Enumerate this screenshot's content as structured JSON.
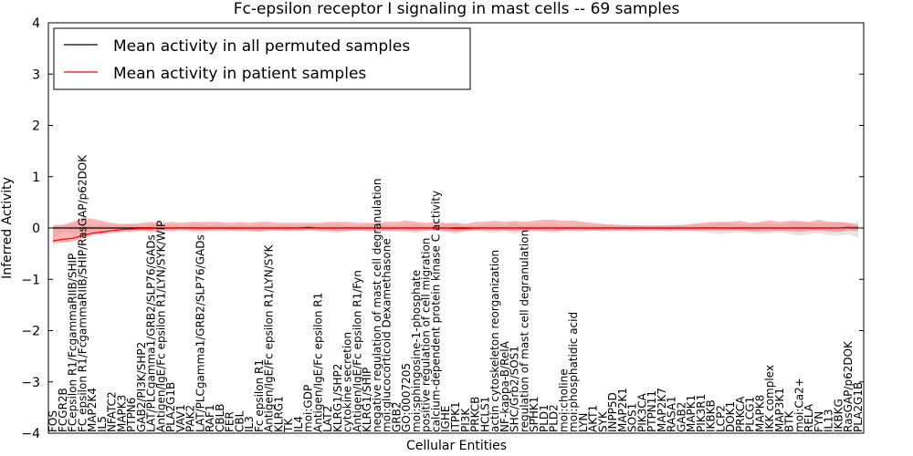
{
  "chart_data": {
    "type": "line",
    "title": "Fc-epsilon receptor I signaling in mast cells -- 69 samples",
    "xlabel": "Cellular Entities",
    "ylabel": "Inferred Activity",
    "ylim": [
      -4,
      4
    ],
    "yticks": [
      "-4",
      "-3",
      "-2",
      "-1",
      "0",
      "1",
      "2",
      "3",
      "4"
    ],
    "legend": {
      "position": "top-left",
      "entries": [
        {
          "label": "Mean activity in all permuted samples",
          "color": "#000000"
        },
        {
          "label": "Mean activity in patient samples",
          "color": "#ff0000"
        }
      ]
    },
    "categories": [
      "FOS",
      "FCGR2B",
      "FCepsilon R1/FcgammaRIIB/SHIP",
      "FC epsilon R1/FcgammaRIIB/SHIP/RasGAP/p62DOK",
      "MAP2K4",
      "IL5",
      "NFATC2",
      "MAPK3",
      "PTPN6",
      "GAB2/PI3K/SHP2",
      "LAT/PLCgamma1/GRB2/SLP76/GADs",
      "Antigen/IgE/Fc epsilon R1/LYN/SYK/WIP",
      "PLA2G1B",
      "VAV1",
      "PAK2",
      "LAT/PLCgamma1/GRB2/SLP76/GADs",
      "RAF1",
      "CBLB",
      "FER",
      "CBL",
      "IL3",
      "Fc epsilon R1",
      "Antigen/IgE/Fc epsilon R1/LYN/SYK",
      "KLRG1",
      "TK",
      "IL4",
      "moi:GDP",
      "Antigen/IgE/Fc epsilon R1",
      "LAT2",
      "KLRG1/SHP2",
      "cytokine secretion",
      "Antigen/IgE/Fc epsilon R1/Fyn",
      "KLRG1/SHIP",
      "negative regulation of mast cell degranulation",
      "moi:glucocorticoid Dexamethasone",
      "GRB2",
      "GO:0007205",
      "moi:sphingosine-1-phosphate",
      "positive regulation of cell migration",
      "calcium-dependent protein kinase C activity",
      "IGHE",
      "ITPK1",
      "PI3K",
      "PRKCB",
      "HCLS1",
      "actin cytoskeleton reorganization",
      "NF-kappa-B/RelA",
      "SHC/Grb2/SOS1",
      "regulation of mast cell degranulation",
      "SPHK1",
      "PLD1",
      "PLD2",
      "moi:choline",
      "moi:phosphatidic acid",
      "LYN",
      "AKT1",
      "SYK",
      "INPP5D",
      "MAP2K1",
      "SOS1",
      "PIK3CA",
      "PTPN11",
      "MAP2K7",
      "RASA1",
      "GAB2",
      "MAPK1",
      "PIK3R1",
      "IKBKB",
      "LCP2",
      "DOK1",
      "PRKCA",
      "PLCG1",
      "MAPK8",
      "IKK complex",
      "MAP3K1",
      "BTK",
      "moi:Ca2+",
      "RELA",
      "FYN",
      "IL13",
      "IKBKG",
      "RasGAP/p62DOK",
      "PLA2G1B"
    ],
    "series": [
      {
        "name": "Mean activity in all permuted samples",
        "color": "#000000",
        "band_color": "#b4b4b4",
        "values": [
          0,
          0,
          0,
          0,
          0,
          0,
          0,
          0,
          0,
          0,
          0,
          0,
          0,
          0,
          0,
          0,
          0,
          0,
          0,
          0,
          0,
          0,
          0,
          0,
          0,
          0,
          0.01,
          0,
          0,
          0,
          0,
          0,
          0,
          0,
          0,
          0,
          0,
          0,
          0,
          0,
          0,
          0,
          0,
          0,
          0,
          0,
          0,
          0,
          0,
          0,
          0,
          0,
          0,
          0,
          0,
          0,
          0,
          0,
          0,
          0,
          0,
          0,
          0,
          0,
          0,
          0,
          0,
          0,
          0,
          0,
          0,
          0,
          0,
          0,
          0,
          0,
          0,
          0,
          0,
          0,
          0,
          0.01,
          0
        ],
        "lower": [
          -0.2,
          -0.08,
          -0.1,
          -0.12,
          -0.06,
          -0.1,
          -0.05,
          -0.07,
          -0.09,
          -0.05,
          -0.1,
          -0.06,
          -0.08,
          -0.05,
          -0.07,
          -0.1,
          -0.06,
          -0.08,
          -0.05,
          -0.07,
          -0.06,
          -0.08,
          -0.06,
          -0.05,
          -0.07,
          -0.06,
          -0.05,
          -0.07,
          -0.08,
          -0.1,
          -0.06,
          -0.05,
          -0.07,
          -0.08,
          -0.06,
          -0.07,
          -0.08,
          -0.1,
          -0.06,
          -0.05,
          -0.08,
          -0.12,
          -0.06,
          -0.05,
          -0.08,
          -0.1,
          -0.05,
          -0.12,
          -0.06,
          -0.08,
          -0.07,
          -0.1,
          -0.05,
          -0.06,
          -0.08,
          -0.05,
          -0.07,
          -0.06,
          -0.05,
          -0.07,
          -0.06,
          -0.05,
          -0.06,
          -0.07,
          -0.05,
          -0.06,
          -0.07,
          -0.1,
          -0.12,
          -0.1,
          -0.08,
          -0.1,
          -0.12,
          -0.1,
          -0.08,
          -0.12,
          -0.15,
          -0.12,
          -0.1,
          -0.14,
          -0.15,
          -0.12,
          -0.2
        ],
        "upper": [
          0.08,
          0.06,
          0.08,
          0.1,
          0.05,
          0.08,
          0.05,
          0.06,
          0.08,
          0.05,
          0.08,
          0.05,
          0.07,
          0.05,
          0.06,
          0.08,
          0.05,
          0.07,
          0.05,
          0.06,
          0.05,
          0.07,
          0.05,
          0.05,
          0.06,
          0.05,
          0.05,
          0.06,
          0.07,
          0.08,
          0.05,
          0.05,
          0.06,
          0.07,
          0.05,
          0.06,
          0.07,
          0.08,
          0.05,
          0.05,
          0.07,
          0.1,
          0.05,
          0.05,
          0.07,
          0.08,
          0.05,
          0.1,
          0.05,
          0.07,
          0.06,
          0.08,
          0.05,
          0.05,
          0.07,
          0.05,
          0.06,
          0.05,
          0.05,
          0.06,
          0.05,
          0.05,
          0.05,
          0.06,
          0.05,
          0.05,
          0.06,
          0.08,
          0.1,
          0.08,
          0.07,
          0.08,
          0.1,
          0.08,
          0.07,
          0.1,
          0.12,
          0.1,
          0.08,
          0.1,
          0.12,
          0.1,
          0.12
        ]
      },
      {
        "name": "Mean activity in patient samples",
        "color": "#ff0000",
        "band_color": "#ff6b6b",
        "values": [
          -0.25,
          -0.22,
          -0.2,
          -0.15,
          -0.1,
          -0.08,
          -0.05,
          -0.03,
          -0.02,
          -0.01,
          -0.01,
          0,
          0,
          0,
          0,
          0,
          0,
          0,
          0,
          0,
          0,
          0,
          0,
          0,
          0,
          0,
          0,
          0,
          0,
          0,
          0,
          0,
          0,
          0,
          0,
          0,
          0,
          0,
          0,
          0,
          0,
          -0.01,
          -0.01,
          0,
          0,
          0,
          0,
          0,
          0,
          0,
          0,
          0,
          0,
          0,
          0,
          0,
          0,
          0,
          0,
          0,
          0,
          0,
          0,
          0,
          0,
          0,
          0,
          0,
          0,
          0,
          0,
          0,
          0,
          0,
          0,
          0,
          0,
          0,
          0,
          0,
          0,
          0.01,
          0.01
        ],
        "lower": [
          -0.3,
          -0.28,
          -0.26,
          -0.2,
          -0.14,
          -0.12,
          -0.1,
          -0.08,
          -0.06,
          -0.05,
          -0.06,
          -0.05,
          -0.05,
          -0.04,
          -0.05,
          -0.05,
          -0.05,
          -0.04,
          -0.05,
          -0.05,
          -0.05,
          -0.06,
          -0.05,
          -0.05,
          -0.05,
          -0.05,
          -0.04,
          -0.05,
          -0.05,
          -0.06,
          -0.05,
          -0.05,
          -0.05,
          -0.06,
          -0.05,
          -0.05,
          -0.05,
          -0.06,
          -0.05,
          -0.05,
          -0.05,
          -0.08,
          -0.06,
          -0.05,
          -0.05,
          -0.05,
          -0.05,
          -0.06,
          -0.05,
          -0.05,
          -0.05,
          -0.06,
          -0.05,
          -0.05,
          -0.05,
          -0.05,
          -0.05,
          -0.05,
          -0.05,
          -0.05,
          -0.05,
          -0.05,
          -0.05,
          -0.05,
          -0.05,
          -0.05,
          -0.05,
          -0.05,
          -0.05,
          -0.05,
          -0.05,
          -0.06,
          -0.07,
          -0.06,
          -0.05,
          -0.06,
          -0.08,
          -0.06,
          -0.05,
          -0.07,
          -0.08,
          -0.05,
          -0.06
        ],
        "upper": [
          0.04,
          0.06,
          0.12,
          0.2,
          0.18,
          0.14,
          0.1,
          0.08,
          0.08,
          0.1,
          0.12,
          0.1,
          0.12,
          0.1,
          0.12,
          0.12,
          0.12,
          0.12,
          0.1,
          0.12,
          0.1,
          0.12,
          0.12,
          0.1,
          0.1,
          0.1,
          0.1,
          0.1,
          0.12,
          0.12,
          0.12,
          0.1,
          0.1,
          0.1,
          0.12,
          0.12,
          0.15,
          0.12,
          0.1,
          0.12,
          0.1,
          0.1,
          0.08,
          0.12,
          0.12,
          0.14,
          0.12,
          0.14,
          0.12,
          0.14,
          0.16,
          0.16,
          0.14,
          0.15,
          0.12,
          0.1,
          0.08,
          0.07,
          0.06,
          0.05,
          0.05,
          0.05,
          0.05,
          0.05,
          0.06,
          0.08,
          0.1,
          0.12,
          0.12,
          0.12,
          0.14,
          0.1,
          0.12,
          0.15,
          0.12,
          0.14,
          0.14,
          0.12,
          0.16,
          0.12,
          0.12,
          0.1,
          0.06
        ]
      }
    ]
  }
}
